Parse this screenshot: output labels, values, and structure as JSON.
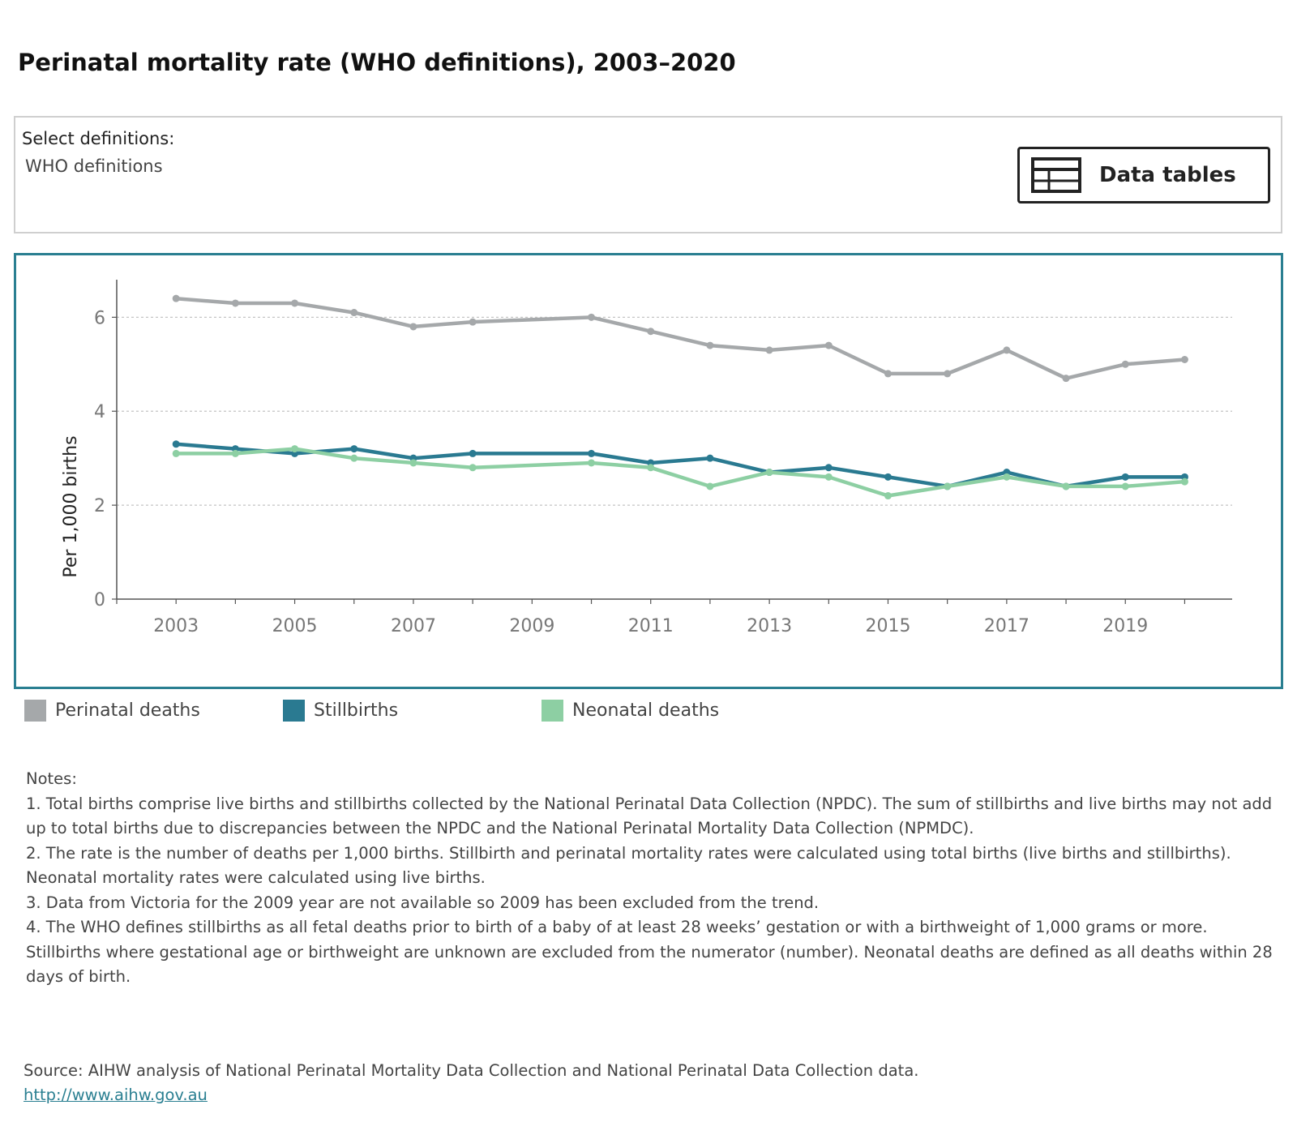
{
  "title": "Perinatal mortality rate (WHO definitions), 2003–2020",
  "filter": {
    "label": "Select definitions:",
    "value": "WHO definitions"
  },
  "data_tables_button": {
    "label": "Data tables",
    "icon": "table-icon"
  },
  "chart_data": {
    "type": "line",
    "title": "",
    "xlabel": "",
    "ylabel": "Per 1,000 births",
    "xlim": [
      2002,
      2020.8
    ],
    "ylim": [
      0,
      6.8
    ],
    "x_ticks": [
      2003,
      2005,
      2007,
      2009,
      2011,
      2013,
      2015,
      2017,
      2019
    ],
    "y_ticks": [
      0,
      2,
      4,
      6
    ],
    "grid": "horizontal dashed",
    "legend_position": "bottom",
    "series": [
      {
        "name": "Perinatal deaths",
        "color": "#a5a8aa",
        "points": [
          {
            "x": 2003,
            "y": 6.4
          },
          {
            "x": 2004,
            "y": 6.3
          },
          {
            "x": 2005,
            "y": 6.3
          },
          {
            "x": 2006,
            "y": 6.1
          },
          {
            "x": 2007,
            "y": 5.8
          },
          {
            "x": 2008,
            "y": 5.9
          },
          {
            "x": 2010,
            "y": 6.0
          },
          {
            "x": 2011,
            "y": 5.7
          },
          {
            "x": 2012,
            "y": 5.4
          },
          {
            "x": 2013,
            "y": 5.3
          },
          {
            "x": 2014,
            "y": 5.4
          },
          {
            "x": 2015,
            "y": 4.8
          },
          {
            "x": 2016,
            "y": 4.8
          },
          {
            "x": 2017,
            "y": 5.3
          },
          {
            "x": 2018,
            "y": 4.7
          },
          {
            "x": 2019,
            "y": 5.0
          },
          {
            "x": 2020,
            "y": 5.1
          }
        ]
      },
      {
        "name": "Stillbirths",
        "color": "#2a7a91",
        "points": [
          {
            "x": 2003,
            "y": 3.3
          },
          {
            "x": 2004,
            "y": 3.2
          },
          {
            "x": 2005,
            "y": 3.1
          },
          {
            "x": 2006,
            "y": 3.2
          },
          {
            "x": 2007,
            "y": 3.0
          },
          {
            "x": 2008,
            "y": 3.1
          },
          {
            "x": 2010,
            "y": 3.1
          },
          {
            "x": 2011,
            "y": 2.9
          },
          {
            "x": 2012,
            "y": 3.0
          },
          {
            "x": 2013,
            "y": 2.7
          },
          {
            "x": 2014,
            "y": 2.8
          },
          {
            "x": 2015,
            "y": 2.6
          },
          {
            "x": 2016,
            "y": 2.4
          },
          {
            "x": 2017,
            "y": 2.7
          },
          {
            "x": 2018,
            "y": 2.4
          },
          {
            "x": 2019,
            "y": 2.6
          },
          {
            "x": 2020,
            "y": 2.6
          }
        ]
      },
      {
        "name": "Neonatal deaths",
        "color": "#8dcfa3",
        "points": [
          {
            "x": 2003,
            "y": 3.1
          },
          {
            "x": 2004,
            "y": 3.1
          },
          {
            "x": 2005,
            "y": 3.2
          },
          {
            "x": 2006,
            "y": 3.0
          },
          {
            "x": 2007,
            "y": 2.9
          },
          {
            "x": 2008,
            "y": 2.8
          },
          {
            "x": 2010,
            "y": 2.9
          },
          {
            "x": 2011,
            "y": 2.8
          },
          {
            "x": 2012,
            "y": 2.4
          },
          {
            "x": 2013,
            "y": 2.7
          },
          {
            "x": 2014,
            "y": 2.6
          },
          {
            "x": 2015,
            "y": 2.2
          },
          {
            "x": 2016,
            "y": 2.4
          },
          {
            "x": 2017,
            "y": 2.6
          },
          {
            "x": 2018,
            "y": 2.4
          },
          {
            "x": 2019,
            "y": 2.4
          },
          {
            "x": 2020,
            "y": 2.5
          }
        ]
      }
    ]
  },
  "legend": [
    {
      "label": "Perinatal deaths",
      "color": "#a5a8aa"
    },
    {
      "label": "Stillbirths",
      "color": "#2a7a91"
    },
    {
      "label": "Neonatal deaths",
      "color": "#8dcfa3"
    }
  ],
  "notes": {
    "heading": "Notes:",
    "items": [
      "1. Total births comprise live births and stillbirths collected by the National Perinatal Data Collection (NPDC). The sum of stillbirths and live births may not add up to total births due to discrepancies between the NPDC and the National Perinatal Mortality Data Collection (NPMDC).",
      "2. The rate is the number of deaths per 1,000 births. Stillbirth and perinatal mortality rates were calculated using total births (live births and stillbirths). Neonatal mortality rates were calculated using live births.",
      "3. Data from Victoria for the 2009 year are not available so 2009 has been excluded from the trend.",
      "4. The WHO defines stillbirths as all fetal deaths prior to birth of a baby of at least 28 weeks’ gestation or with a birthweight of 1,000 grams or more. Stillbirths where gestational age or birthweight are unknown are excluded from the numerator (number). Neonatal deaths are defined as all deaths within 28 days of birth."
    ]
  },
  "source": {
    "text": "Source: AIHW analysis of National Perinatal Mortality Data Collection and National Perinatal Data Collection data.",
    "link": "http://www.aihw.gov.au"
  }
}
